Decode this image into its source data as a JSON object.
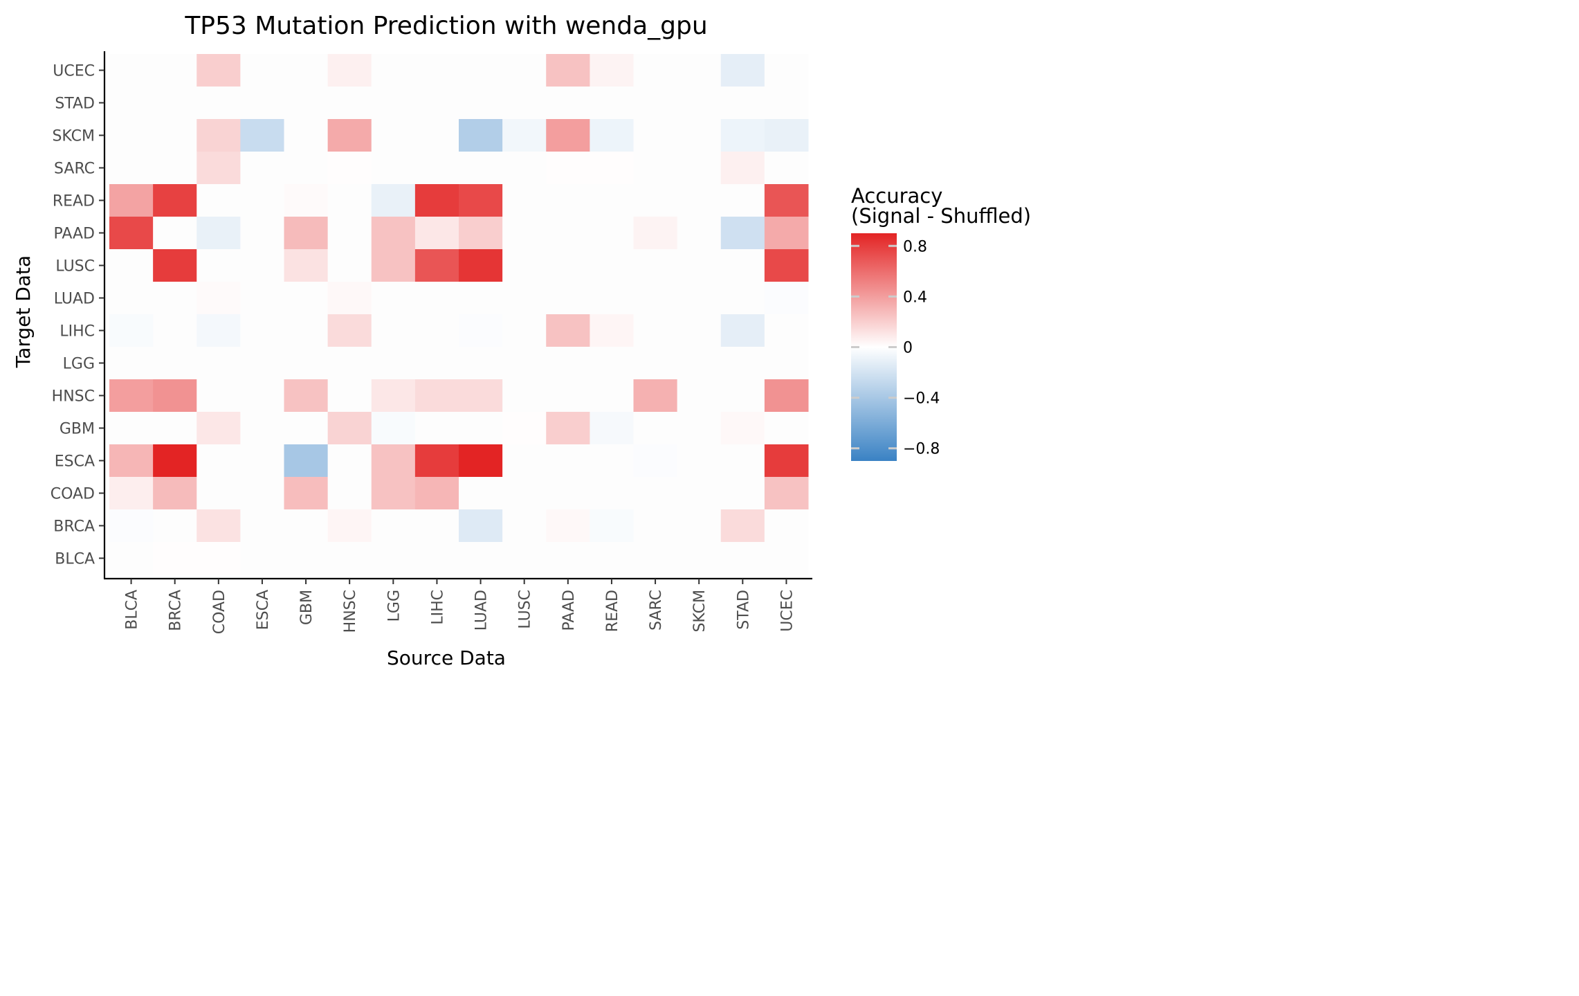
{
  "chart_data": {
    "type": "heatmap",
    "title": "TP53 Mutation Prediction with wenda_gpu",
    "xlabel": "Source Data",
    "ylabel": "Target Data",
    "x_categories": [
      "BLCA",
      "BRCA",
      "COAD",
      "ESCA",
      "GBM",
      "HNSC",
      "LGG",
      "LIHC",
      "LUAD",
      "LUSC",
      "PAAD",
      "READ",
      "SARC",
      "SKCM",
      "STAD",
      "UCEC"
    ],
    "y_categories": [
      "UCEC",
      "STAD",
      "SKCM",
      "SARC",
      "READ",
      "PAAD",
      "LUSC",
      "LUAD",
      "LIHC",
      "LGG",
      "HNSC",
      "GBM",
      "ESCA",
      "COAD",
      "BRCA",
      "BLCA"
    ],
    "values": [
      [
        0.0,
        0.0,
        0.2,
        0.0,
        0.0,
        0.06,
        0.0,
        0.0,
        0.0,
        0.0,
        0.25,
        0.05,
        0.0,
        0.0,
        -0.12,
        0.0
      ],
      [
        0.0,
        0.0,
        0.0,
        0.0,
        0.0,
        0.0,
        0.0,
        0.0,
        0.0,
        0.0,
        0.0,
        0.0,
        0.0,
        0.0,
        0.0,
        0.0
      ],
      [
        0.0,
        0.0,
        0.18,
        -0.25,
        0.0,
        0.35,
        0.0,
        0.0,
        -0.35,
        -0.06,
        0.4,
        -0.08,
        0.0,
        0.0,
        -0.08,
        -0.1
      ],
      [
        0.0,
        0.0,
        0.15,
        0.0,
        0.0,
        0.01,
        0.0,
        0.0,
        0.0,
        0.0,
        0.01,
        0.01,
        0.0,
        0.0,
        0.06,
        0.0
      ],
      [
        0.38,
        0.78,
        0.0,
        0.0,
        0.02,
        0.0,
        -0.1,
        0.8,
        0.75,
        0.0,
        0.0,
        0.0,
        0.0,
        0.0,
        0.0,
        0.7
      ],
      [
        0.75,
        0.0,
        -0.1,
        0.0,
        0.28,
        0.0,
        0.25,
        0.1,
        0.2,
        0.0,
        0.0,
        0.0,
        0.05,
        0.0,
        -0.22,
        0.35
      ],
      [
        0.0,
        0.8,
        0.0,
        0.0,
        0.12,
        0.0,
        0.25,
        0.7,
        0.83,
        0.0,
        0.0,
        0.0,
        0.0,
        0.0,
        0.0,
        0.75
      ],
      [
        0.0,
        0.0,
        0.02,
        0.0,
        0.0,
        0.03,
        0.0,
        0.0,
        0.0,
        0.0,
        0.0,
        0.0,
        0.0,
        0.0,
        0.0,
        -0.02
      ],
      [
        -0.03,
        0.0,
        -0.05,
        0.0,
        0.0,
        0.15,
        0.0,
        0.0,
        -0.02,
        0.0,
        0.25,
        0.04,
        0.0,
        0.0,
        -0.12,
        0.0
      ],
      [
        0.0,
        0.0,
        0.0,
        0.0,
        0.0,
        0.0,
        0.0,
        0.0,
        0.0,
        0.0,
        0.0,
        0.0,
        0.0,
        0.0,
        0.0,
        0.0
      ],
      [
        0.4,
        0.45,
        0.0,
        0.0,
        0.25,
        0.0,
        0.1,
        0.15,
        0.15,
        0.0,
        0.0,
        0.0,
        0.32,
        0.0,
        0.0,
        0.45
      ],
      [
        0.0,
        0.0,
        0.1,
        0.0,
        0.0,
        0.18,
        -0.03,
        0.0,
        0.0,
        0.01,
        0.2,
        -0.04,
        0.0,
        0.0,
        0.03,
        0.0
      ],
      [
        0.3,
        0.9,
        0.0,
        0.0,
        -0.4,
        0.0,
        0.25,
        0.8,
        0.92,
        0.0,
        0.0,
        0.0,
        -0.02,
        0.0,
        0.0,
        0.8
      ],
      [
        0.07,
        0.28,
        0.0,
        0.0,
        0.27,
        0.0,
        0.25,
        0.3,
        0.0,
        0.0,
        0.0,
        0.0,
        0.0,
        0.0,
        0.0,
        0.25
      ],
      [
        -0.02,
        0.0,
        0.12,
        0.0,
        0.0,
        0.04,
        0.0,
        0.0,
        -0.15,
        0.0,
        0.03,
        -0.03,
        0.0,
        0.0,
        0.15,
        0.0
      ],
      [
        0.0,
        0.01,
        0.01,
        0.0,
        0.0,
        0.0,
        0.0,
        0.0,
        0.0,
        0.0,
        0.0,
        0.0,
        0.0,
        0.0,
        0.0,
        0.0
      ]
    ],
    "legend": {
      "title_line1": "Accuracy",
      "title_line2": "(Signal - Shuffled)",
      "ticks": [
        0.8,
        0.4,
        0,
        -0.4,
        -0.8
      ],
      "tick_labels": [
        "0.8",
        "0.4",
        "0",
        "−0.4",
        "−0.8"
      ],
      "range": [
        -0.9,
        0.9
      ],
      "placement": "right"
    },
    "colors": {
      "low": "#3a82c4",
      "mid": "#ffffff",
      "high": "#e32424"
    },
    "grid": false
  }
}
